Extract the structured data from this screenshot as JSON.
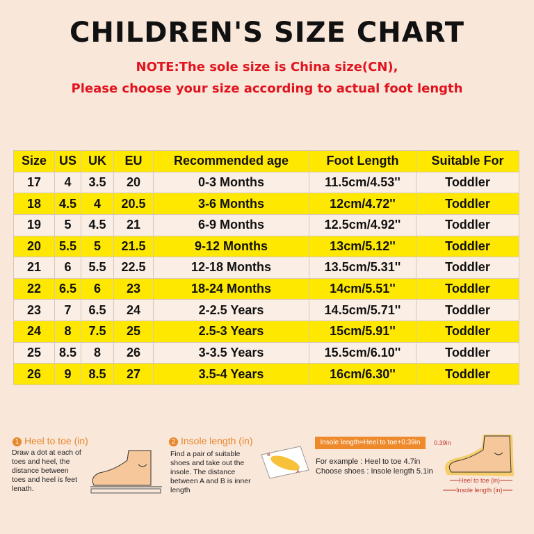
{
  "header": {
    "title": "CHILDREN'S SIZE CHART",
    "note_lines": [
      "NOTE:The sole size is China size(CN),",
      "Please choose your size according to actual foot length"
    ]
  },
  "table": {
    "columns": [
      "Size",
      "US",
      "UK",
      "EU",
      "Recommended age",
      "Foot Length",
      "Suitable For"
    ],
    "rows": [
      [
        "17",
        "4",
        "3.5",
        "20",
        "0-3 Months",
        "11.5cm/4.53''",
        "Toddler"
      ],
      [
        "18",
        "4.5",
        "4",
        "20.5",
        "3-6 Months",
        "12cm/4.72''",
        "Toddler"
      ],
      [
        "19",
        "5",
        "4.5",
        "21",
        "6-9 Months",
        "12.5cm/4.92''",
        "Toddler"
      ],
      [
        "20",
        "5.5",
        "5",
        "21.5",
        "9-12 Months",
        "13cm/5.12''",
        "Toddler"
      ],
      [
        "21",
        "6",
        "5.5",
        "22.5",
        "12-18 Months",
        "13.5cm/5.31''",
        "Toddler"
      ],
      [
        "22",
        "6.5",
        "6",
        "23",
        "18-24 Months",
        "14cm/5.51''",
        "Toddler"
      ],
      [
        "23",
        "7",
        "6.5",
        "24",
        "2-2.5 Years",
        "14.5cm/5.71''",
        "Toddler"
      ],
      [
        "24",
        "8",
        "7.5",
        "25",
        "2.5-3 Years",
        "15cm/5.91''",
        "Toddler"
      ],
      [
        "25",
        "8.5",
        "8",
        "26",
        "3-3.5 Years",
        "15.5cm/6.10''",
        "Toddler"
      ],
      [
        "26",
        "9",
        "8.5",
        "27",
        "3.5-4 Years",
        "16cm/6.30''",
        "Toddler"
      ]
    ]
  },
  "guide": {
    "step1": {
      "number": "1",
      "title": "Heel to toe (in)",
      "lines": [
        "Draw a dot at each of",
        "toes and heel, the",
        "distance between",
        "toes and heel is feet",
        "lenath."
      ]
    },
    "step2": {
      "number": "2",
      "title": "Insole length (in)",
      "lines": [
        "Find a pair of suitable",
        "shoes and take out the",
        "insole. The distance",
        "between A and B is inner",
        "length"
      ],
      "point_a": "A",
      "point_b": "B"
    },
    "formula": {
      "box": "Insole length=Heel to toe+0.39in",
      "lines": [
        "For example : Heel to toe  4.7in",
        "Choose shoes : Insole length 5.1in"
      ]
    },
    "figure": {
      "gap": "0.39in",
      "heel": "Heel to toe (in)",
      "insole": "Insole length (in)"
    }
  }
}
